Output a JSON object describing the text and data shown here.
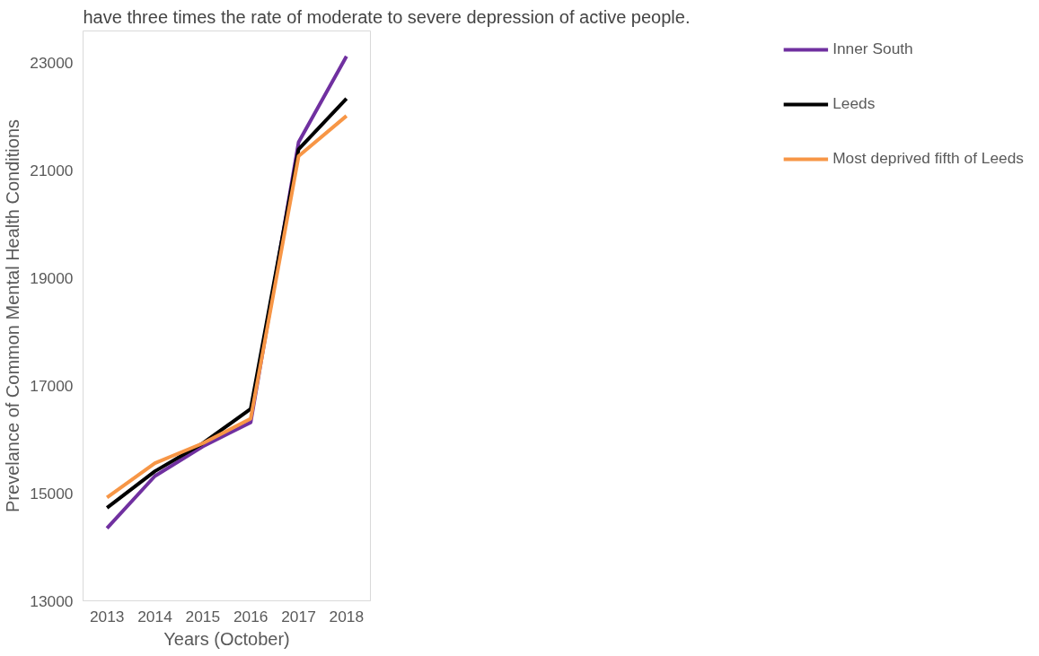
{
  "chart_data": {
    "type": "line",
    "xlabel": "Years (October)",
    "ylabel": "Prevelance of Common Mental Health Conditions",
    "annotations": [
      "have three times the rate of moderate to severe depression of active people."
    ],
    "categories": [
      "2013",
      "2014",
      "2015",
      "2016",
      "2017",
      "2018"
    ],
    "series": [
      {
        "name": "Inner South",
        "color": "#7030a0",
        "values": [
          14350,
          15320,
          15870,
          16320,
          21530,
          23130
        ]
      },
      {
        "name": "Leeds",
        "color": "#000000",
        "values": [
          14730,
          15410,
          15930,
          16570,
          21400,
          22340
        ]
      },
      {
        "name": "Most deprived fifth of Leeds",
        "color": "#f79646",
        "values": [
          14920,
          15560,
          15930,
          16390,
          21270,
          22020
        ]
      }
    ],
    "ylim": [
      13000,
      23600
    ],
    "yticks": [
      13000,
      15000,
      17000,
      19000,
      21000,
      23000
    ],
    "grid": false,
    "legend": "right",
    "marker": "none",
    "line_style": "solid"
  }
}
